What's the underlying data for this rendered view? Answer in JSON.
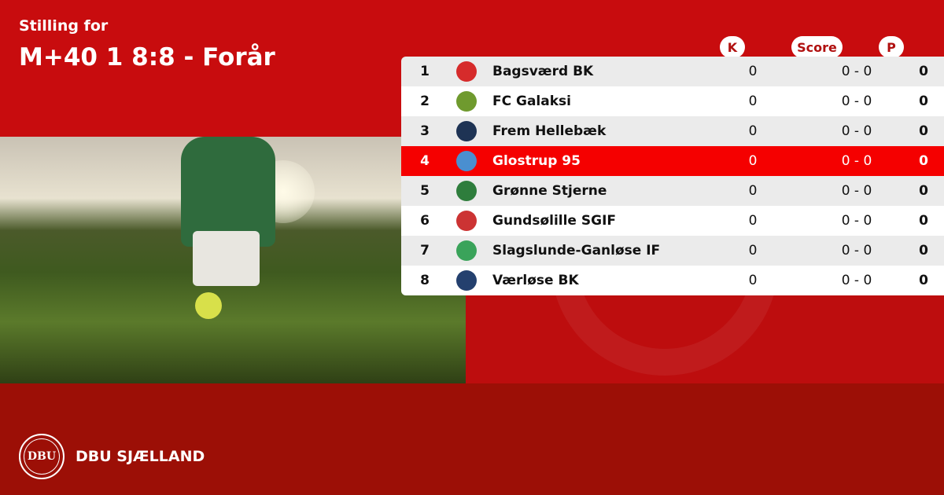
{
  "header": {
    "subtitle": "Stilling for",
    "title": "M+40 1 8:8 - Forår"
  },
  "columns": {
    "k": "K",
    "score": "Score",
    "p": "P"
  },
  "colors": {
    "primary": "#c80c0e",
    "highlight": "#f50000",
    "footer": "#9c0f06"
  },
  "rows": [
    {
      "pos": "1",
      "team": "Bagsværd BK",
      "k": "0",
      "score": "0 - 0",
      "p": "0",
      "logo": "BB",
      "logo_color": "#d62b2b",
      "highlight": false
    },
    {
      "pos": "2",
      "team": "FC Galaksi",
      "k": "0",
      "score": "0 - 0",
      "p": "0",
      "logo": "G",
      "logo_color": "#6f9a2e",
      "highlight": false
    },
    {
      "pos": "3",
      "team": "Frem Hellebæk",
      "k": "0",
      "score": "0 - 0",
      "p": "0",
      "logo": "FH",
      "logo_color": "#1e3354",
      "highlight": false
    },
    {
      "pos": "4",
      "team": "Glostrup 95",
      "k": "0",
      "score": "0 - 0",
      "p": "0",
      "logo": "G95",
      "logo_color": "#4a8fd0",
      "highlight": true
    },
    {
      "pos": "5",
      "team": "Grønne Stjerne",
      "k": "0",
      "score": "0 - 0",
      "p": "0",
      "logo": "★",
      "logo_color": "#2e7d3c",
      "highlight": false
    },
    {
      "pos": "6",
      "team": "Gundsølille SGIF",
      "k": "0",
      "score": "0 - 0",
      "p": "0",
      "logo": "S",
      "logo_color": "#c33",
      "highlight": false
    },
    {
      "pos": "7",
      "team": "Slagslunde-Ganløse IF",
      "k": "0",
      "score": "0 - 0",
      "p": "0",
      "logo": "SG",
      "logo_color": "#3aa35a",
      "highlight": false
    },
    {
      "pos": "8",
      "team": "Værløse BK",
      "k": "0",
      "score": "0 - 0",
      "p": "0",
      "logo": "VB",
      "logo_color": "#24406e",
      "highlight": false
    }
  ],
  "footer": {
    "brand": "DBU SJÆLLAND",
    "seal": "DBU"
  }
}
